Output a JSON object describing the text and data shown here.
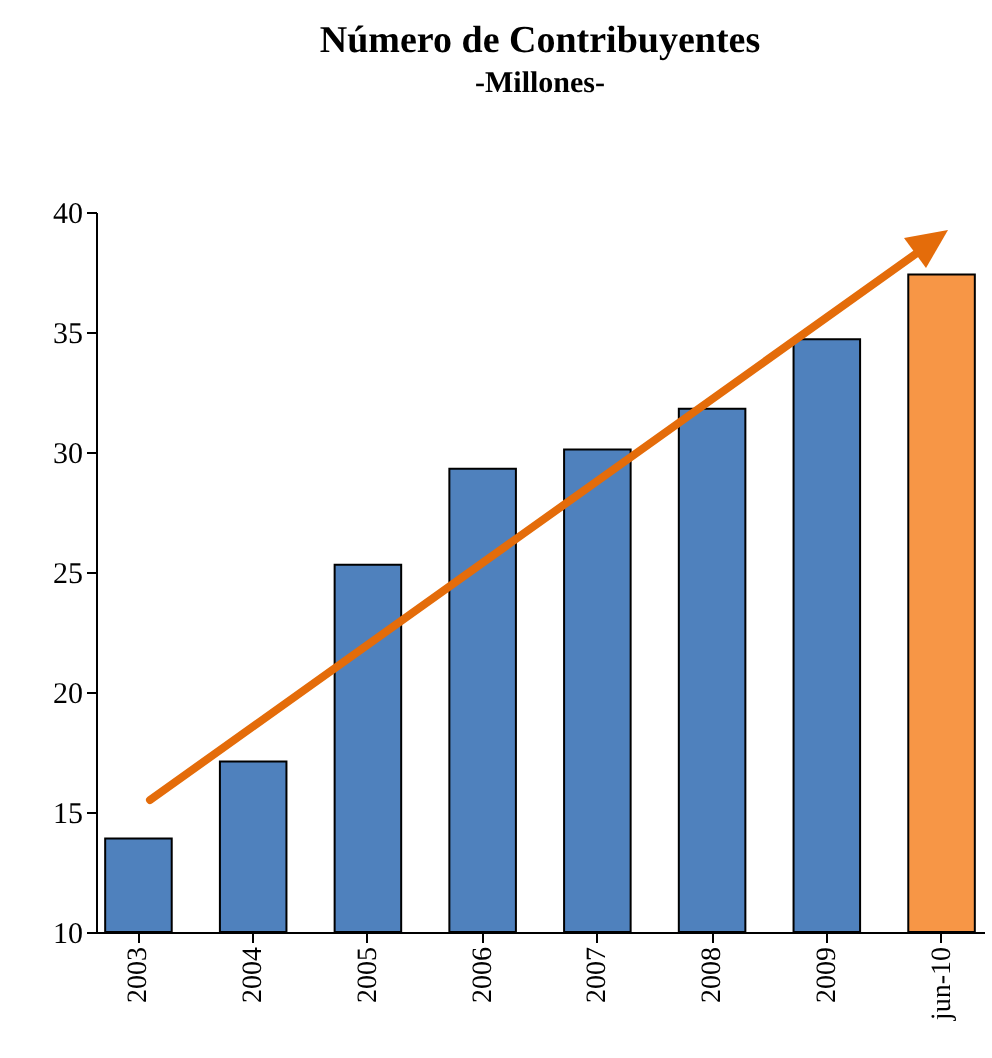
{
  "chart_data": {
    "type": "bar",
    "title": "Número de Contribuyentes",
    "subtitle": "-Millones-",
    "categories": [
      "2003",
      "2004",
      "2005",
      "2006",
      "2007",
      "2008",
      "2009",
      "jun-10"
    ],
    "values": [
      13.9,
      17.1,
      25.3,
      29.3,
      30.1,
      31.8,
      34.7,
      37.4
    ],
    "colors": [
      "#4f81bd",
      "#4f81bd",
      "#4f81bd",
      "#4f81bd",
      "#4f81bd",
      "#4f81bd",
      "#4f81bd",
      "#f79646"
    ],
    "ylim": [
      10,
      40
    ],
    "yticks": [
      10,
      15,
      20,
      25,
      30,
      35,
      40
    ],
    "grid": false
  }
}
